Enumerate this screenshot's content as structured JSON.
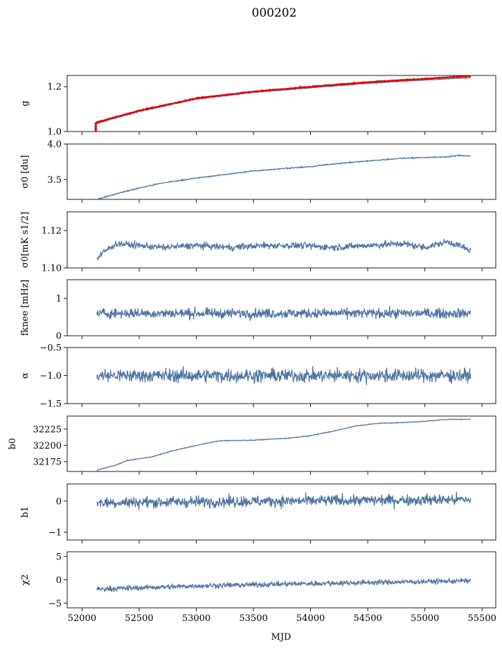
{
  "figure": {
    "title": "000202",
    "shared_xlabel": "MJD",
    "x_ticks": [
      "52000",
      "52500",
      "53000",
      "53500",
      "54000",
      "54500",
      "55000",
      "55500"
    ],
    "line_color": "#4c72a0",
    "highlight_color": "#e00000"
  },
  "chart_data": [
    {
      "type": "line",
      "ylabel": "g",
      "xlim": [
        51870,
        55620
      ],
      "ylim": [
        1.0,
        1.25
      ],
      "yticks": [
        1.0,
        1.2
      ],
      "ytick_labels": [
        "1.0",
        "1.2"
      ],
      "grid": false,
      "series": [
        {
          "color": "#4c72a0",
          "x": [
            52120,
            52500,
            53000,
            53500,
            54000,
            54500,
            55000,
            55400
          ],
          "y": [
            1.035,
            1.09,
            1.145,
            1.175,
            1.195,
            1.215,
            1.23,
            1.24
          ]
        },
        {
          "color": "#e00000",
          "x": [
            52120,
            52500,
            53000,
            53500,
            54000,
            54500,
            55000,
            55400
          ],
          "y": [
            1.04,
            1.093,
            1.148,
            1.178,
            1.2,
            1.22,
            1.235,
            1.248
          ]
        }
      ]
    },
    {
      "type": "line",
      "ylabel": "σ0 [du]",
      "xlim": [
        51870,
        55620
      ],
      "ylim": [
        3.22,
        4.0
      ],
      "yticks": [
        3.5,
        4.0
      ],
      "ytick_labels": [
        "3.5",
        "4.0"
      ],
      "series": [
        {
          "color": "#4c72a0",
          "x": [
            52130,
            52300,
            52500,
            52700,
            53000,
            53300,
            53500,
            53800,
            54000,
            54200,
            54500,
            54800,
            55000,
            55200,
            55300,
            55400
          ],
          "y": [
            3.22,
            3.3,
            3.38,
            3.45,
            3.52,
            3.58,
            3.62,
            3.66,
            3.68,
            3.72,
            3.76,
            3.8,
            3.81,
            3.82,
            3.84,
            3.83
          ]
        }
      ]
    },
    {
      "type": "line",
      "ylabel": "σ0[mK s1/2]",
      "xlim": [
        51870,
        55620
      ],
      "ylim": [
        1.1,
        1.13
      ],
      "yticks": [
        1.1,
        1.12
      ],
      "ytick_labels": [
        "1.10",
        "1.12"
      ],
      "series": [
        {
          "color": "#4c72a0",
          "x": [
            52130,
            52200,
            52300,
            52500,
            52700,
            53000,
            53300,
            53600,
            53900,
            54200,
            54500,
            54800,
            55000,
            55200,
            55300,
            55400
          ],
          "y": [
            1.105,
            1.109,
            1.113,
            1.112,
            1.111,
            1.112,
            1.111,
            1.112,
            1.112,
            1.111,
            1.112,
            1.113,
            1.111,
            1.114,
            1.112,
            1.109
          ]
        }
      ]
    },
    {
      "type": "line",
      "ylabel": "fknee [mHz]",
      "xlim": [
        51870,
        55620
      ],
      "ylim": [
        0,
        1.5
      ],
      "yticks": [
        0,
        1
      ],
      "ytick_labels": [
        "0",
        "1"
      ],
      "series": [
        {
          "color": "#4c72a0",
          "x": [
            52130,
            55400
          ],
          "y": [
            0.6,
            0.6
          ]
        }
      ]
    },
    {
      "type": "line",
      "ylabel": "α",
      "xlim": [
        51870,
        55620
      ],
      "ylim": [
        -1.5,
        -0.5
      ],
      "yticks": [
        -1.5,
        -1.0,
        -0.5
      ],
      "ytick_labels": [
        "−1.5",
        "−1.0",
        "−0.5"
      ],
      "series": [
        {
          "color": "#4c72a0",
          "x": [
            52130,
            55400
          ],
          "y": [
            -1.0,
            -1.0
          ]
        }
      ]
    },
    {
      "type": "line",
      "ylabel": "b0",
      "xlim": [
        51870,
        55620
      ],
      "ylim": [
        32160,
        32245
      ],
      "yticks": [
        32175,
        32200,
        32225
      ],
      "ytick_labels": [
        "32175",
        "32200",
        "32225"
      ],
      "series": [
        {
          "color": "#4c72a0",
          "x": [
            52130,
            52300,
            52400,
            52600,
            52800,
            53000,
            53200,
            53500,
            53800,
            54000,
            54200,
            54400,
            54600,
            54800,
            55000,
            55200,
            55400
          ],
          "y": [
            32162,
            32170,
            32177,
            32182,
            32192,
            32200,
            32207,
            32208,
            32211,
            32215,
            32222,
            32230,
            32234,
            32235,
            32237,
            32240,
            32240
          ]
        }
      ]
    },
    {
      "type": "line",
      "ylabel": "b1",
      "xlim": [
        51870,
        55620
      ],
      "ylim": [
        -1.25,
        0.55
      ],
      "yticks": [
        -1,
        0
      ],
      "ytick_labels": [
        "−1",
        "0"
      ],
      "series": [
        {
          "color": "#4c72a0",
          "x": [
            52130,
            55400
          ],
          "y": [
            -0.05,
            0.05
          ]
        }
      ]
    },
    {
      "type": "line",
      "ylabel": "χ2",
      "xlim": [
        51870,
        55620
      ],
      "ylim": [
        -6,
        6
      ],
      "yticks": [
        -5,
        0,
        5
      ],
      "ytick_labels": [
        "−5",
        "0",
        "5"
      ],
      "series": [
        {
          "color": "#4c72a0",
          "x": [
            52130,
            53000,
            54000,
            55400
          ],
          "y": [
            -2.0,
            -1.3,
            -0.8,
            -0.2
          ]
        }
      ]
    }
  ]
}
